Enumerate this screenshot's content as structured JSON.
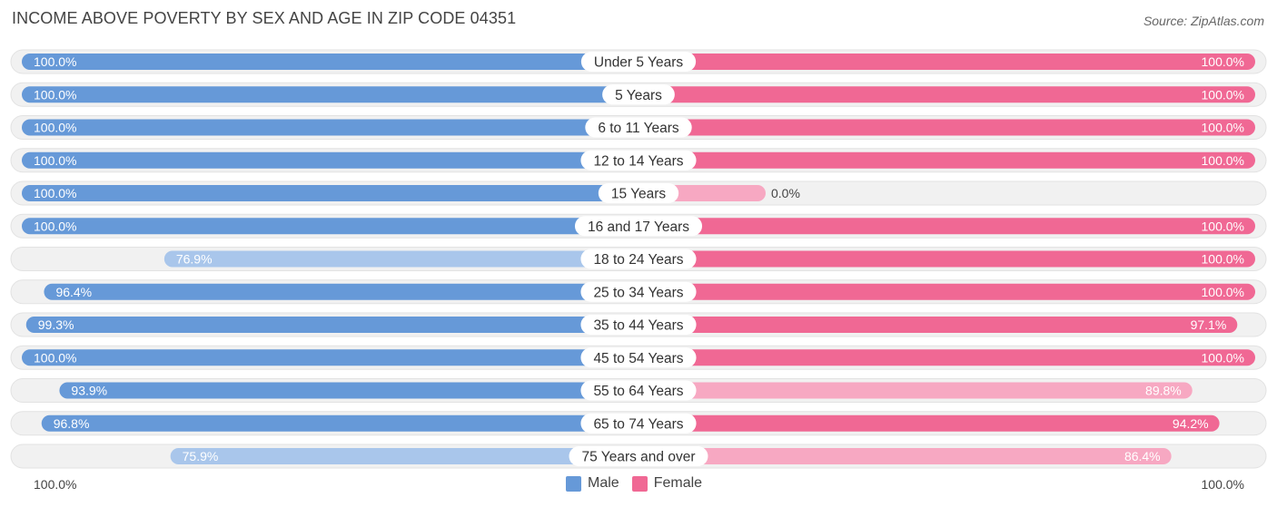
{
  "title": "INCOME ABOVE POVERTY BY SEX AND AGE IN ZIP CODE 04351",
  "source": "Source: ZipAtlas.com",
  "colors": {
    "male": "#6699d8",
    "male_light": "#a9c6eb",
    "female": "#f06894",
    "female_light": "#f7a8c2",
    "track": "#f1f1f1"
  },
  "legend": {
    "male": "Male",
    "female": "Female"
  },
  "axis": {
    "left_label": "100.0%",
    "right_label": "100.0%"
  },
  "chart_data": {
    "type": "bar",
    "orientation": "horizontal-diverging",
    "title": "INCOME ABOVE POVERTY BY SEX AND AGE IN ZIP CODE 04351",
    "categories": [
      "Under 5 Years",
      "5 Years",
      "6 to 11 Years",
      "12 to 14 Years",
      "15 Years",
      "16 and 17 Years",
      "18 to 24 Years",
      "25 to 34 Years",
      "35 to 44 Years",
      "45 to 54 Years",
      "55 to 64 Years",
      "65 to 74 Years",
      "75 Years and over"
    ],
    "series": [
      {
        "name": "Male",
        "values": [
          100.0,
          100.0,
          100.0,
          100.0,
          100.0,
          100.0,
          76.9,
          96.4,
          99.3,
          100.0,
          93.9,
          96.8,
          75.9
        ]
      },
      {
        "name": "Female",
        "values": [
          100.0,
          100.0,
          100.0,
          100.0,
          0.0,
          100.0,
          100.0,
          100.0,
          97.1,
          100.0,
          89.8,
          94.2,
          86.4
        ]
      }
    ],
    "value_labels": {
      "Male": [
        "100.0%",
        "100.0%",
        "100.0%",
        "100.0%",
        "100.0%",
        "100.0%",
        "76.9%",
        "96.4%",
        "99.3%",
        "100.0%",
        "93.9%",
        "96.8%",
        "75.9%"
      ],
      "Female": [
        "100.0%",
        "100.0%",
        "100.0%",
        "100.0%",
        "0.0%",
        "100.0%",
        "100.0%",
        "100.0%",
        "97.1%",
        "100.0%",
        "89.8%",
        "94.2%",
        "86.4%"
      ]
    },
    "xlim": [
      0,
      100
    ],
    "unit": "%",
    "legend_position": "bottom-center"
  }
}
